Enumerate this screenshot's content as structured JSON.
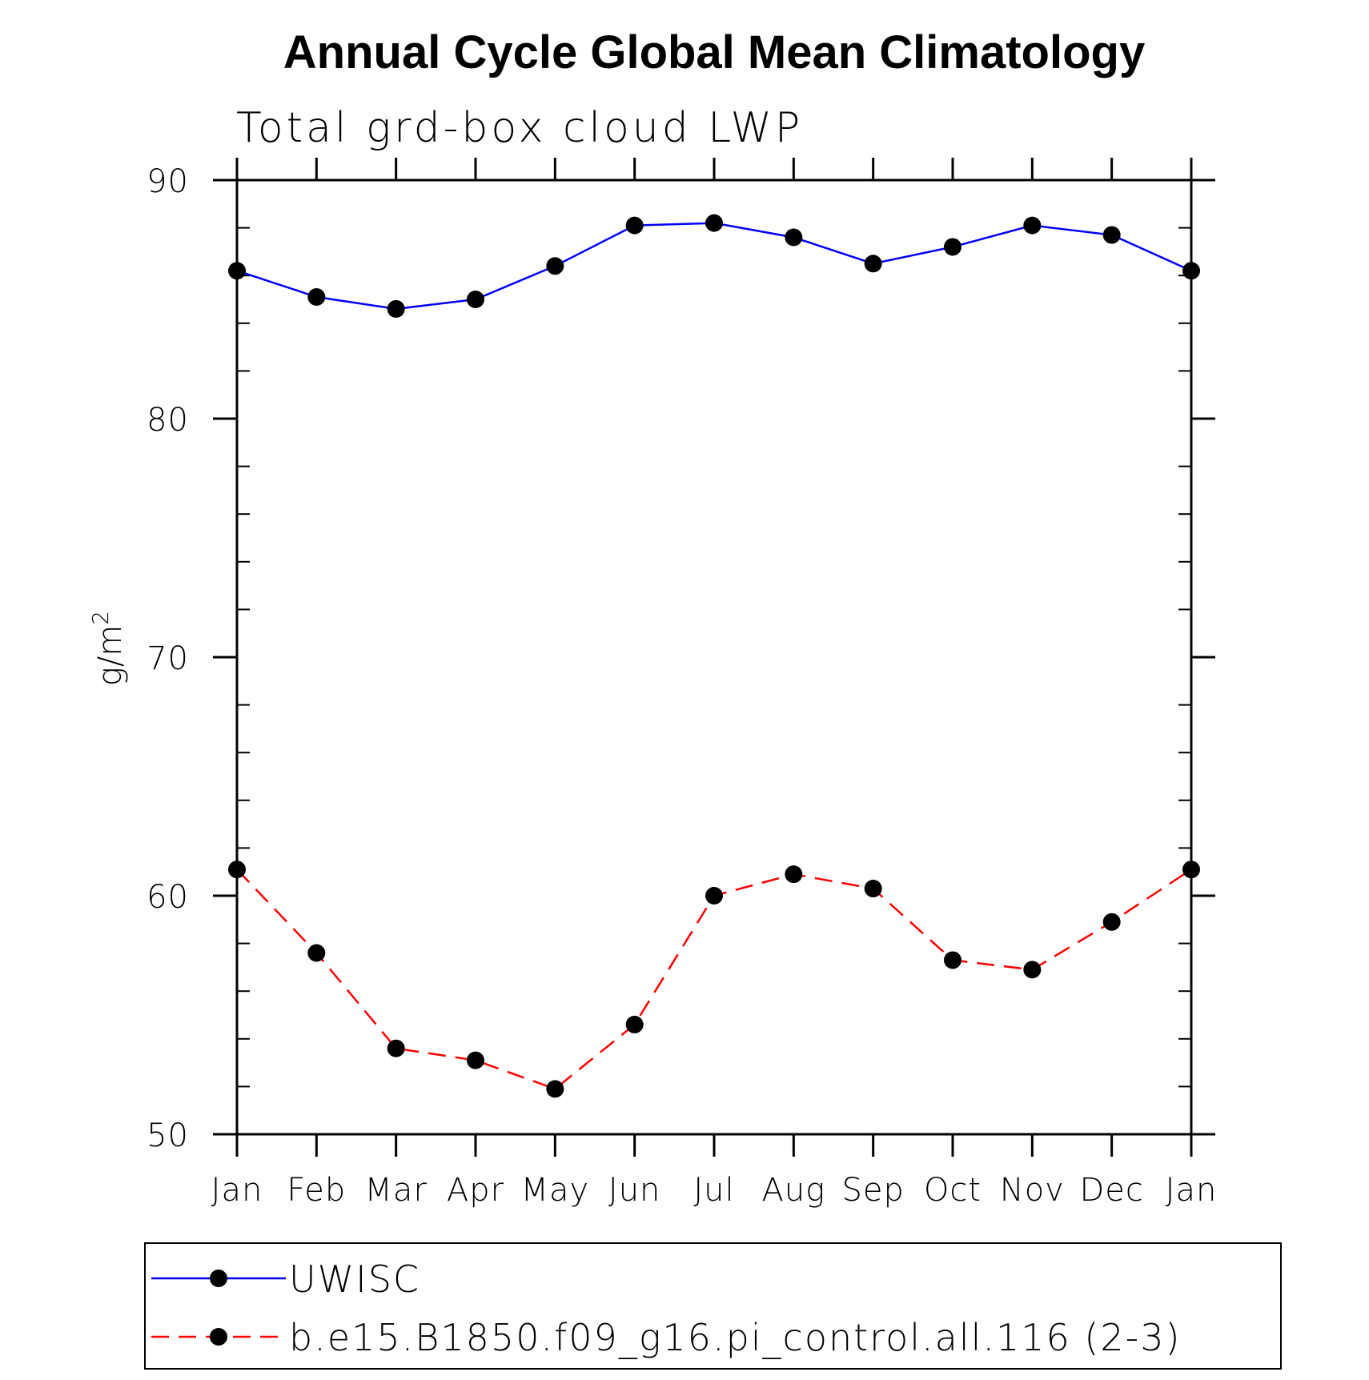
{
  "chart_data": {
    "type": "line",
    "title": "Annual Cycle Global Mean Climatology",
    "subtitle": "Total grd-box cloud LWP",
    "xlabel": "",
    "ylabel": "g/m",
    "ylabel_superscript": "2",
    "categories": [
      "Jan",
      "Feb",
      "Mar",
      "Apr",
      "May",
      "Jun",
      "Jul",
      "Aug",
      "Sep",
      "Oct",
      "Nov",
      "Dec",
      "Jan"
    ],
    "ylim": [
      50,
      90
    ],
    "yticks": [
      50,
      60,
      70,
      80,
      90
    ],
    "yticks_minor": [
      52,
      54,
      56,
      58,
      62,
      64,
      66,
      68,
      72,
      74,
      76,
      78,
      82,
      84,
      86,
      88
    ],
    "grid": false,
    "legend_position": "bottom",
    "series": [
      {
        "name": "UWISC",
        "color": "#0000ff",
        "dash": "solid",
        "marker": "filled-circle",
        "values": [
          86.2,
          85.1,
          84.6,
          85.0,
          86.4,
          88.1,
          88.2,
          87.6,
          86.5,
          87.2,
          88.1,
          87.7,
          86.2
        ]
      },
      {
        "name": "b.e15.B1850.f09_g16.pi_control.all.116 (2-3)",
        "color": "#ff0000",
        "dash": "dashed",
        "marker": "filled-circle",
        "values": [
          61.1,
          57.6,
          53.6,
          53.1,
          51.9,
          54.6,
          60.0,
          60.9,
          60.3,
          57.3,
          56.9,
          58.9,
          61.1
        ]
      }
    ]
  }
}
